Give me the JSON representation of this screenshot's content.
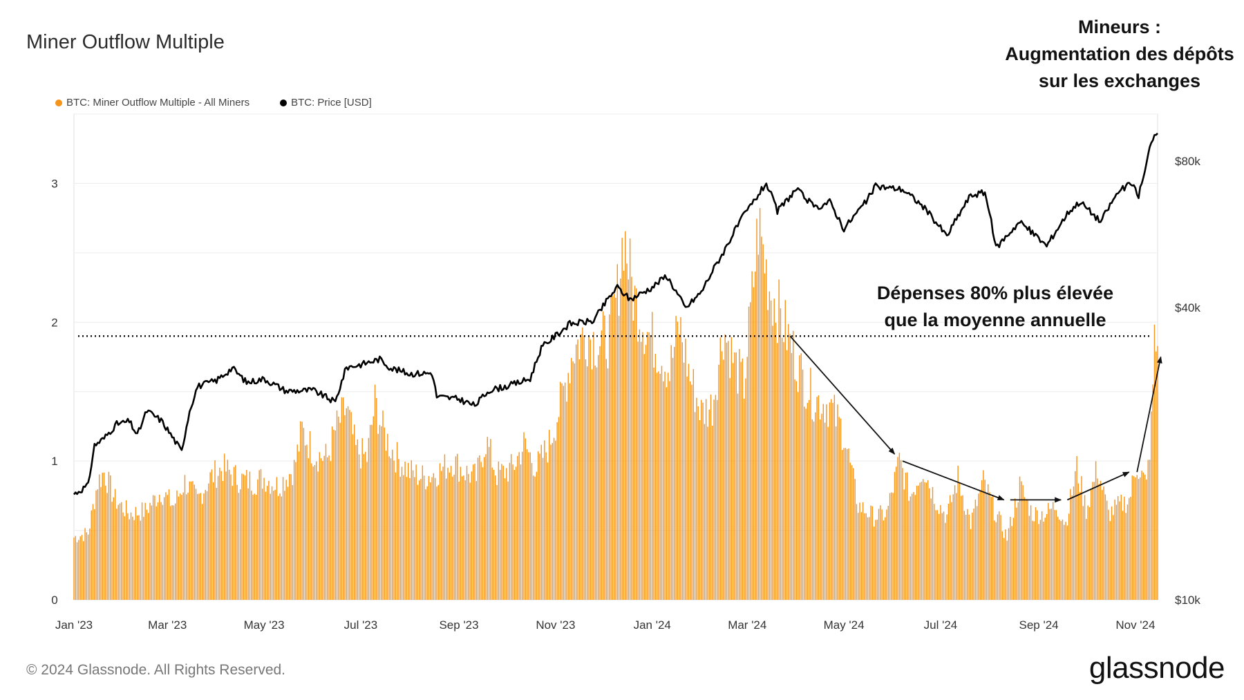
{
  "header": {
    "title": "Miner Outflow Multiple"
  },
  "callout": {
    "lines": [
      "Mineurs :",
      "Augmentation des dépôts",
      "sur les exchanges"
    ]
  },
  "legend": {
    "items": [
      {
        "label": "BTC: Miner Outflow Multiple - All Miners",
        "color": "#f7931a"
      },
      {
        "label": "BTC: Price [USD]",
        "color": "#000000"
      }
    ]
  },
  "annotation": {
    "lines": [
      "Dépenses 80% plus élevée",
      "que la moyenne annuelle"
    ]
  },
  "footer": {
    "copyright": "© 2024 Glassnode. All Rights Reserved.",
    "logo": "glassnode"
  },
  "colors": {
    "bar": "#f7931a",
    "price": "#000000",
    "grid": "#ececec"
  },
  "chart_data": {
    "type": "bar+line",
    "title": "Miner Outflow Multiple",
    "x_range": [
      "2023-01-01",
      "2024-11-15"
    ],
    "x_ticks": [
      "Jan '23",
      "Mar '23",
      "May '23",
      "Jul '23",
      "Sep '23",
      "Nov '23",
      "Jan '24",
      "Mar '24",
      "May '24",
      "Jul '24",
      "Sep '24",
      "Nov '24"
    ],
    "y_left": {
      "label": "Miner Outflow Multiple",
      "ticks": [
        "0",
        "1",
        "2",
        "3"
      ],
      "ylim": [
        0,
        3.5
      ]
    },
    "y_right": {
      "label": "Price [USD]",
      "scale": "log",
      "ticks": [
        "$10k",
        "$40k",
        "$80k"
      ],
      "tick_values": [
        10000,
        40000,
        80000
      ],
      "ylim": [
        10000,
        100000
      ]
    },
    "threshold_line": {
      "value": 1.9,
      "style": "dotted",
      "label": "Dépenses 80% plus élevée que la moyenne annuelle"
    },
    "series": [
      {
        "name": "BTC: Miner Outflow Multiple - All Miners",
        "type": "bar",
        "points": [
          [
            "2023-01-01",
            0.45
          ],
          [
            "2023-01-10",
            0.48
          ],
          [
            "2023-01-16",
            0.85
          ],
          [
            "2023-01-20",
            0.92
          ],
          [
            "2023-01-27",
            0.72
          ],
          [
            "2023-02-05",
            0.62
          ],
          [
            "2023-02-15",
            0.64
          ],
          [
            "2023-02-25",
            0.78
          ],
          [
            "2023-03-05",
            0.68
          ],
          [
            "2023-03-12",
            0.85
          ],
          [
            "2023-03-20",
            0.72
          ],
          [
            "2023-03-28",
            0.88
          ],
          [
            "2023-04-05",
            0.95
          ],
          [
            "2023-04-15",
            0.87
          ],
          [
            "2023-04-25",
            0.85
          ],
          [
            "2023-05-01",
            0.88
          ],
          [
            "2023-05-10",
            0.82
          ],
          [
            "2023-05-20",
            0.95
          ],
          [
            "2023-05-25",
            1.22
          ],
          [
            "2023-06-02",
            1.05
          ],
          [
            "2023-06-10",
            1.02
          ],
          [
            "2023-06-15",
            1.22
          ],
          [
            "2023-06-22",
            1.38
          ],
          [
            "2023-06-28",
            1.08
          ],
          [
            "2023-07-05",
            1.02
          ],
          [
            "2023-07-10",
            1.42
          ],
          [
            "2023-07-15",
            1.22
          ],
          [
            "2023-07-22",
            1.05
          ],
          [
            "2023-08-01",
            0.92
          ],
          [
            "2023-08-10",
            0.88
          ],
          [
            "2023-08-20",
            0.93
          ],
          [
            "2023-08-28",
            1.0
          ],
          [
            "2023-09-05",
            0.92
          ],
          [
            "2023-09-12",
            0.88
          ],
          [
            "2023-09-18",
            1.15
          ],
          [
            "2023-09-25",
            0.9
          ],
          [
            "2023-10-05",
            0.95
          ],
          [
            "2023-10-12",
            1.12
          ],
          [
            "2023-10-20",
            0.95
          ],
          [
            "2023-10-28",
            1.12
          ],
          [
            "2023-11-05",
            1.45
          ],
          [
            "2023-11-12",
            1.8
          ],
          [
            "2023-11-20",
            1.92
          ],
          [
            "2023-11-28",
            1.85
          ],
          [
            "2023-12-05",
            1.9
          ],
          [
            "2023-12-10",
            2.2
          ],
          [
            "2023-12-14",
            2.65
          ],
          [
            "2023-12-20",
            2.2
          ],
          [
            "2023-12-28",
            1.95
          ],
          [
            "2024-01-05",
            1.8
          ],
          [
            "2024-01-12",
            1.65
          ],
          [
            "2024-01-18",
            1.98
          ],
          [
            "2024-01-25",
            1.6
          ],
          [
            "2024-02-01",
            1.35
          ],
          [
            "2024-02-08",
            1.4
          ],
          [
            "2024-02-15",
            1.95
          ],
          [
            "2024-02-22",
            1.7
          ],
          [
            "2024-02-28",
            1.55
          ],
          [
            "2024-03-05",
            2.3
          ],
          [
            "2024-03-08",
            2.7
          ],
          [
            "2024-03-15",
            2.25
          ],
          [
            "2024-03-25",
            1.95
          ],
          [
            "2024-04-05",
            1.6
          ],
          [
            "2024-04-12",
            1.45
          ],
          [
            "2024-04-22",
            1.4
          ],
          [
            "2024-05-01",
            1.2
          ],
          [
            "2024-05-10",
            0.68
          ],
          [
            "2024-05-20",
            0.6
          ],
          [
            "2024-05-28",
            0.62
          ],
          [
            "2024-06-05",
            1.0
          ],
          [
            "2024-06-12",
            0.75
          ],
          [
            "2024-06-20",
            0.95
          ],
          [
            "2024-06-28",
            0.72
          ],
          [
            "2024-07-05",
            0.6
          ],
          [
            "2024-07-12",
            0.88
          ],
          [
            "2024-07-20",
            0.55
          ],
          [
            "2024-07-28",
            0.85
          ],
          [
            "2024-08-05",
            0.62
          ],
          [
            "2024-08-12",
            0.45
          ],
          [
            "2024-08-20",
            0.82
          ],
          [
            "2024-08-28",
            0.62
          ],
          [
            "2024-09-05",
            0.62
          ],
          [
            "2024-09-12",
            0.68
          ],
          [
            "2024-09-18",
            0.55
          ],
          [
            "2024-09-25",
            0.95
          ],
          [
            "2024-10-01",
            0.65
          ],
          [
            "2024-10-08",
            0.95
          ],
          [
            "2024-10-15",
            0.62
          ],
          [
            "2024-10-22",
            0.68
          ],
          [
            "2024-10-28",
            0.72
          ],
          [
            "2024-11-02",
            0.98
          ],
          [
            "2024-11-08",
            0.82
          ],
          [
            "2024-11-11",
            1.25
          ],
          [
            "2024-11-13",
            1.85
          ],
          [
            "2024-11-15",
            1.8
          ]
        ]
      },
      {
        "name": "BTC: Price [USD]",
        "type": "line",
        "points": [
          [
            "2023-01-01",
            16500
          ],
          [
            "2023-01-10",
            17200
          ],
          [
            "2023-01-14",
            20800
          ],
          [
            "2023-01-20",
            21500
          ],
          [
            "2023-01-28",
            23000
          ],
          [
            "2023-02-05",
            23300
          ],
          [
            "2023-02-10",
            21800
          ],
          [
            "2023-02-16",
            24500
          ],
          [
            "2023-02-25",
            23400
          ],
          [
            "2023-03-10",
            20200
          ],
          [
            "2023-03-15",
            24500
          ],
          [
            "2023-03-20",
            27500
          ],
          [
            "2023-04-01",
            28300
          ],
          [
            "2023-04-11",
            30000
          ],
          [
            "2023-04-20",
            28000
          ],
          [
            "2023-05-01",
            28500
          ],
          [
            "2023-05-15",
            26900
          ],
          [
            "2023-06-01",
            27000
          ],
          [
            "2023-06-15",
            25500
          ],
          [
            "2023-06-22",
            30100
          ],
          [
            "2023-07-01",
            30500
          ],
          [
            "2023-07-13",
            31300
          ],
          [
            "2023-07-20",
            30000
          ],
          [
            "2023-08-01",
            29200
          ],
          [
            "2023-08-15",
            29300
          ],
          [
            "2023-08-18",
            26200
          ],
          [
            "2023-09-01",
            25900
          ],
          [
            "2023-09-11",
            25100
          ],
          [
            "2023-09-20",
            27000
          ],
          [
            "2023-10-01",
            27500
          ],
          [
            "2023-10-16",
            28500
          ],
          [
            "2023-10-23",
            33000
          ],
          [
            "2023-11-01",
            35000
          ],
          [
            "2023-11-10",
            37000
          ],
          [
            "2023-11-25",
            37500
          ],
          [
            "2023-12-05",
            42000
          ],
          [
            "2023-12-10",
            44000
          ],
          [
            "2023-12-18",
            41500
          ],
          [
            "2024-01-01",
            44000
          ],
          [
            "2024-01-10",
            46500
          ],
          [
            "2024-01-22",
            39800
          ],
          [
            "2024-02-01",
            43000
          ],
          [
            "2024-02-15",
            52000
          ],
          [
            "2024-02-28",
            62000
          ],
          [
            "2024-03-05",
            66000
          ],
          [
            "2024-03-13",
            72000
          ],
          [
            "2024-03-20",
            63000
          ],
          [
            "2024-04-01",
            70000
          ],
          [
            "2024-04-13",
            64000
          ],
          [
            "2024-04-22",
            66000
          ],
          [
            "2024-05-01",
            58000
          ],
          [
            "2024-05-15",
            66000
          ],
          [
            "2024-05-21",
            71000
          ],
          [
            "2024-06-07",
            70000
          ],
          [
            "2024-06-20",
            64500
          ],
          [
            "2024-07-05",
            56000
          ],
          [
            "2024-07-20",
            68000
          ],
          [
            "2024-07-29",
            69000
          ],
          [
            "2024-08-05",
            53000
          ],
          [
            "2024-08-20",
            60000
          ],
          [
            "2024-09-06",
            53500
          ],
          [
            "2024-09-20",
            63000
          ],
          [
            "2024-09-27",
            66000
          ],
          [
            "2024-10-10",
            60000
          ],
          [
            "2024-10-21",
            69000
          ],
          [
            "2024-10-29",
            72000
          ],
          [
            "2024-11-03",
            68000
          ],
          [
            "2024-11-07",
            76000
          ],
          [
            "2024-11-11",
            88000
          ],
          [
            "2024-11-13",
            91000
          ],
          [
            "2024-11-15",
            90000
          ]
        ]
      }
    ],
    "annotation_arrows": [
      {
        "from": [
          "2024-03-28",
          1.9
        ],
        "to": [
          "2024-06-02",
          1.05
        ]
      },
      {
        "from": [
          "2024-06-07",
          1.0
        ],
        "to": [
          "2024-08-10",
          0.72
        ]
      },
      {
        "from": [
          "2024-08-14",
          0.72
        ],
        "to": [
          "2024-09-15",
          0.72
        ]
      },
      {
        "from": [
          "2024-09-19",
          0.72
        ],
        "to": [
          "2024-10-28",
          0.92
        ]
      },
      {
        "from": [
          "2024-11-02",
          0.92
        ],
        "to": [
          "2024-11-17",
          1.75
        ]
      }
    ]
  }
}
